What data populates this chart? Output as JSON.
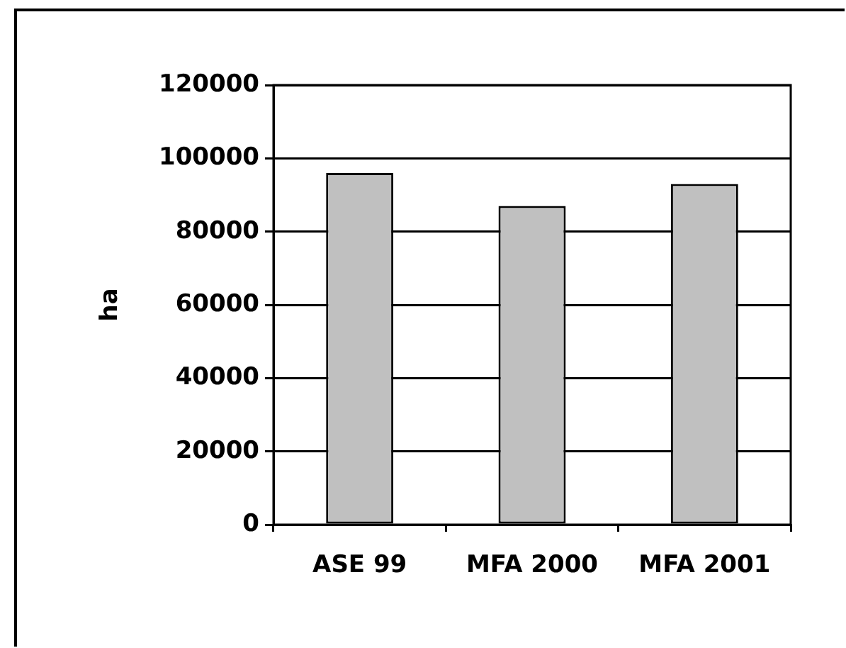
{
  "chart_data": {
    "type": "bar",
    "ylabel": "ha",
    "categories": [
      "ASE 99",
      "MFA 2000",
      "MFA 2001"
    ],
    "values": [
      96000,
      87000,
      93000
    ],
    "color": "#c0c0c0",
    "ylim": [
      0,
      120000
    ],
    "yticks": [
      0,
      20000,
      40000,
      60000,
      80000,
      100000,
      120000
    ],
    "grid": "y",
    "legend": false
  }
}
